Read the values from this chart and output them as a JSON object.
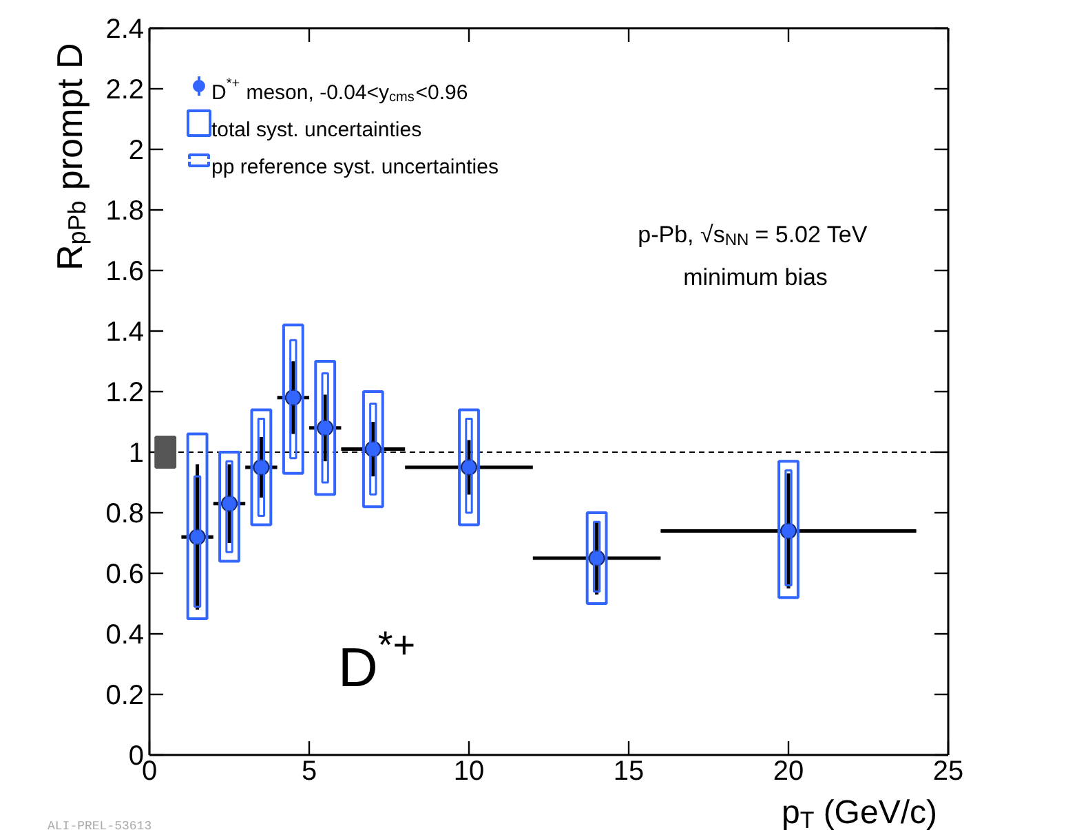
{
  "chart_data": {
    "type": "scatter",
    "xlabel": "p$_{T}$ (GeV/c)",
    "ylabel": "R$_{pPb}$ prompt D",
    "xlim": [
      0,
      25
    ],
    "xticks": [
      0,
      5,
      10,
      15,
      20,
      25
    ],
    "ylim": [
      0,
      2.4
    ],
    "yticks": [
      0,
      0.2,
      0.4,
      0.6,
      0.8,
      1,
      1.2,
      1.4,
      1.6,
      1.8,
      2,
      2.2,
      2.4
    ],
    "grid": false,
    "legend": "top left",
    "series": [
      {
        "name": "D$^{*+}$ meson, -0.04<y$_{cms}$<0.96",
        "marker": "circle",
        "color": "#3366ff",
        "x": [
          1.5,
          2.5,
          3.5,
          4.5,
          5.5,
          7,
          10,
          14,
          20
        ],
        "values": [
          0.72,
          0.83,
          0.95,
          1.18,
          1.08,
          1.01,
          0.95,
          0.65,
          0.74
        ],
        "errors": [
          0.24,
          0.13,
          0.1,
          0.12,
          0.11,
          0.09,
          0.09,
          0.12,
          0.19
        ],
        "xerrors": [
          [
            1,
            2
          ],
          [
            2,
            3
          ],
          [
            3,
            4
          ],
          [
            4,
            5
          ],
          [
            5,
            6
          ],
          [
            6,
            8
          ],
          [
            8,
            12
          ],
          [
            12,
            16
          ],
          [
            16,
            24
          ]
        ]
      },
      {
        "name": "total syst. uncertainties",
        "type": "bar",
        "color": "#3366ff",
        "x": [
          1.5,
          2.5,
          3.5,
          4.5,
          5.5,
          7,
          10,
          14,
          20
        ],
        "base": [
          0.45,
          0.64,
          0.76,
          0.93,
          0.86,
          0.82,
          0.76,
          0.5,
          0.52
        ],
        "values": [
          0.61,
          0.36,
          0.38,
          0.49,
          0.44,
          0.38,
          0.38,
          0.3,
          0.45
        ]
      },
      {
        "name": "pp reference syst. uncertainties",
        "type": "bar",
        "color": "#3366ff",
        "x": [
          1.5,
          2.5,
          3.5,
          4.5,
          5.5,
          7,
          10,
          14,
          20
        ],
        "base": [
          0.49,
          0.67,
          0.79,
          0.98,
          0.9,
          0.86,
          0.8,
          0.54,
          0.56
        ],
        "values": [
          0.43,
          0.3,
          0.32,
          0.39,
          0.36,
          0.3,
          0.31,
          0.23,
          0.38
        ]
      },
      {
        "type": "bar",
        "color": "#555555",
        "x": [
          0.5
        ],
        "base": [
          0.95
        ],
        "values": [
          0.1
        ]
      }
    ],
    "ref_lines": [
      {
        "axis": "y",
        "value": 1,
        "line_style": "dashed",
        "color": "#000000"
      }
    ],
    "annotations": [
      "D$^{*+}$",
      "p-Pb, √s$_{NN}$ = 5.02 TeV",
      "minimum bias",
      "ALI-PREL-53613"
    ]
  }
}
